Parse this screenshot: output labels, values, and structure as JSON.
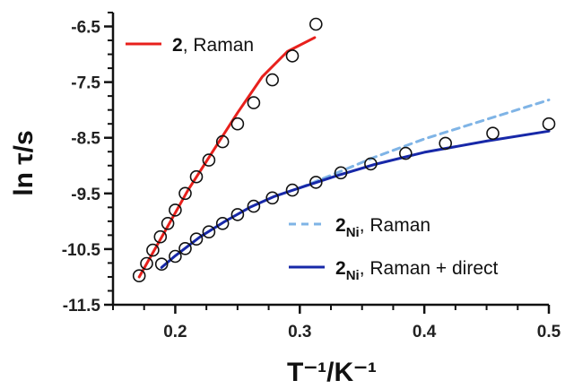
{
  "chart_data": {
    "type": "scatter",
    "xlabel": "T⁻¹/K⁻¹",
    "ylabel": "ln τ/s",
    "xlim": [
      0.15,
      0.5
    ],
    "ylim": [
      -11.5,
      -6.25
    ],
    "x_major_ticks": [
      "0.2",
      "0.3",
      "0.4",
      "0.5"
    ],
    "y_major_ticks": [
      "-6.5",
      "-7.5",
      "-8.5",
      "-9.5",
      "-10.5",
      "-11.5"
    ],
    "grid": false,
    "legend_placement": "top-left (series 2) and bottom-right (series 2Ni)",
    "series": [
      {
        "name": "2 data",
        "kind": "points",
        "marker": "open-circle",
        "color": "#111111",
        "points": [
          [
            0.171,
            -10.98
          ],
          [
            0.177,
            -10.76
          ],
          [
            0.182,
            -10.52
          ],
          [
            0.188,
            -10.28
          ],
          [
            0.194,
            -10.04
          ],
          [
            0.2,
            -9.8
          ],
          [
            0.208,
            -9.5
          ],
          [
            0.217,
            -9.2
          ],
          [
            0.227,
            -8.9
          ],
          [
            0.238,
            -8.57
          ],
          [
            0.25,
            -8.25
          ],
          [
            0.263,
            -7.87
          ],
          [
            0.278,
            -7.46
          ],
          [
            0.294,
            -7.03
          ],
          [
            0.313,
            -6.46
          ]
        ]
      },
      {
        "name": "2Ni data",
        "kind": "points",
        "marker": "open-circle",
        "color": "#111111",
        "points": [
          [
            0.189,
            -10.77
          ],
          [
            0.2,
            -10.63
          ],
          [
            0.208,
            -10.49
          ],
          [
            0.217,
            -10.32
          ],
          [
            0.227,
            -10.19
          ],
          [
            0.238,
            -10.04
          ],
          [
            0.25,
            -9.88
          ],
          [
            0.263,
            -9.73
          ],
          [
            0.278,
            -9.58
          ],
          [
            0.294,
            -9.44
          ],
          [
            0.313,
            -9.3
          ],
          [
            0.333,
            -9.13
          ],
          [
            0.357,
            -8.97
          ],
          [
            0.385,
            -8.78
          ],
          [
            0.417,
            -8.6
          ],
          [
            0.455,
            -8.42
          ],
          [
            0.5,
            -8.25
          ]
        ]
      },
      {
        "name": "2, Raman",
        "kind": "fit",
        "style": "solid",
        "color": "#e8201c",
        "points": [
          [
            0.171,
            -11.0
          ],
          [
            0.19,
            -10.25
          ],
          [
            0.21,
            -9.45
          ],
          [
            0.23,
            -8.75
          ],
          [
            0.25,
            -8.05
          ],
          [
            0.27,
            -7.4
          ],
          [
            0.29,
            -6.95
          ],
          [
            0.312,
            -6.7
          ]
        ]
      },
      {
        "name": "2Ni, Raman",
        "kind": "fit",
        "style": "dashed",
        "color": "#7fb4e6",
        "points": [
          [
            0.3,
            -9.4
          ],
          [
            0.33,
            -9.13
          ],
          [
            0.36,
            -8.85
          ],
          [
            0.4,
            -8.52
          ],
          [
            0.45,
            -8.17
          ],
          [
            0.5,
            -7.82
          ]
        ]
      },
      {
        "name": "2Ni, Raman + direct",
        "kind": "fit",
        "style": "solid",
        "color": "#1728a8",
        "points": [
          [
            0.189,
            -10.83
          ],
          [
            0.2,
            -10.62
          ],
          [
            0.22,
            -10.28
          ],
          [
            0.24,
            -10.0
          ],
          [
            0.26,
            -9.75
          ],
          [
            0.28,
            -9.55
          ],
          [
            0.3,
            -9.4
          ],
          [
            0.33,
            -9.18
          ],
          [
            0.36,
            -8.98
          ],
          [
            0.4,
            -8.76
          ],
          [
            0.45,
            -8.56
          ],
          [
            0.5,
            -8.38
          ]
        ]
      }
    ],
    "legend": [
      {
        "bold": "2",
        "sub": "",
        "rest": ", Raman",
        "color": "#e8201c",
        "style": "solid"
      },
      {
        "bold": "2",
        "sub": "Ni",
        "rest": ", Raman",
        "color": "#7fb4e6",
        "style": "dashed"
      },
      {
        "bold": "2",
        "sub": "Ni",
        "rest": ", Raman + direct",
        "color": "#1728a8",
        "style": "solid"
      }
    ]
  }
}
